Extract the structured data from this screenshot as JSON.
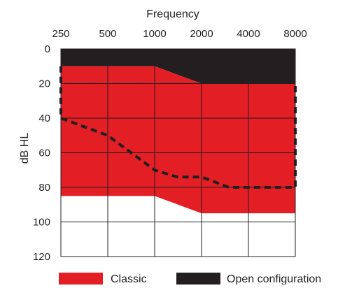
{
  "chart_data": {
    "type": "area",
    "title": "Frequency",
    "xlabel": "Frequency",
    "ylabel": "dB HL",
    "x_scale": "log",
    "y_inverted": true,
    "grid": true,
    "legend_position": "bottom",
    "x_ticks": [
      250,
      500,
      1000,
      2000,
      4000,
      8000
    ],
    "x_tick_labels": [
      "250",
      "500",
      "1000",
      "2000",
      "4000",
      "8000"
    ],
    "y_ticks": [
      0,
      20,
      40,
      60,
      80,
      100,
      120
    ],
    "y_tick_labels": [
      "0",
      "20",
      "40",
      "60",
      "80",
      "100",
      "120"
    ],
    "xlim": [
      250,
      8000
    ],
    "ylim": [
      0,
      120
    ],
    "series": [
      {
        "name": "Open configuration",
        "color": "#231f20",
        "upper_bound": [
          [
            250,
            0
          ],
          [
            1000,
            0
          ],
          [
            2000,
            0
          ],
          [
            8000,
            0
          ]
        ],
        "lower_bound": [
          [
            250,
            10
          ],
          [
            1000,
            10
          ],
          [
            2000,
            20
          ],
          [
            8000,
            20
          ]
        ]
      },
      {
        "name": "Classic",
        "color": "#e31e24",
        "upper_bound": [
          [
            250,
            10
          ],
          [
            1000,
            10
          ],
          [
            2000,
            20
          ],
          [
            8000,
            20
          ]
        ],
        "lower_bound": [
          [
            250,
            85
          ],
          [
            1000,
            85
          ],
          [
            2000,
            95
          ],
          [
            8000,
            95
          ]
        ]
      }
    ],
    "dashed_line": {
      "color": "#231f20",
      "points": [
        [
          250,
          10
        ],
        [
          250,
          40
        ],
        [
          500,
          50
        ],
        [
          1000,
          70
        ],
        [
          1400,
          74
        ],
        [
          2000,
          74
        ],
        [
          3000,
          80
        ],
        [
          8000,
          80
        ],
        [
          8000,
          20
        ]
      ]
    }
  }
}
